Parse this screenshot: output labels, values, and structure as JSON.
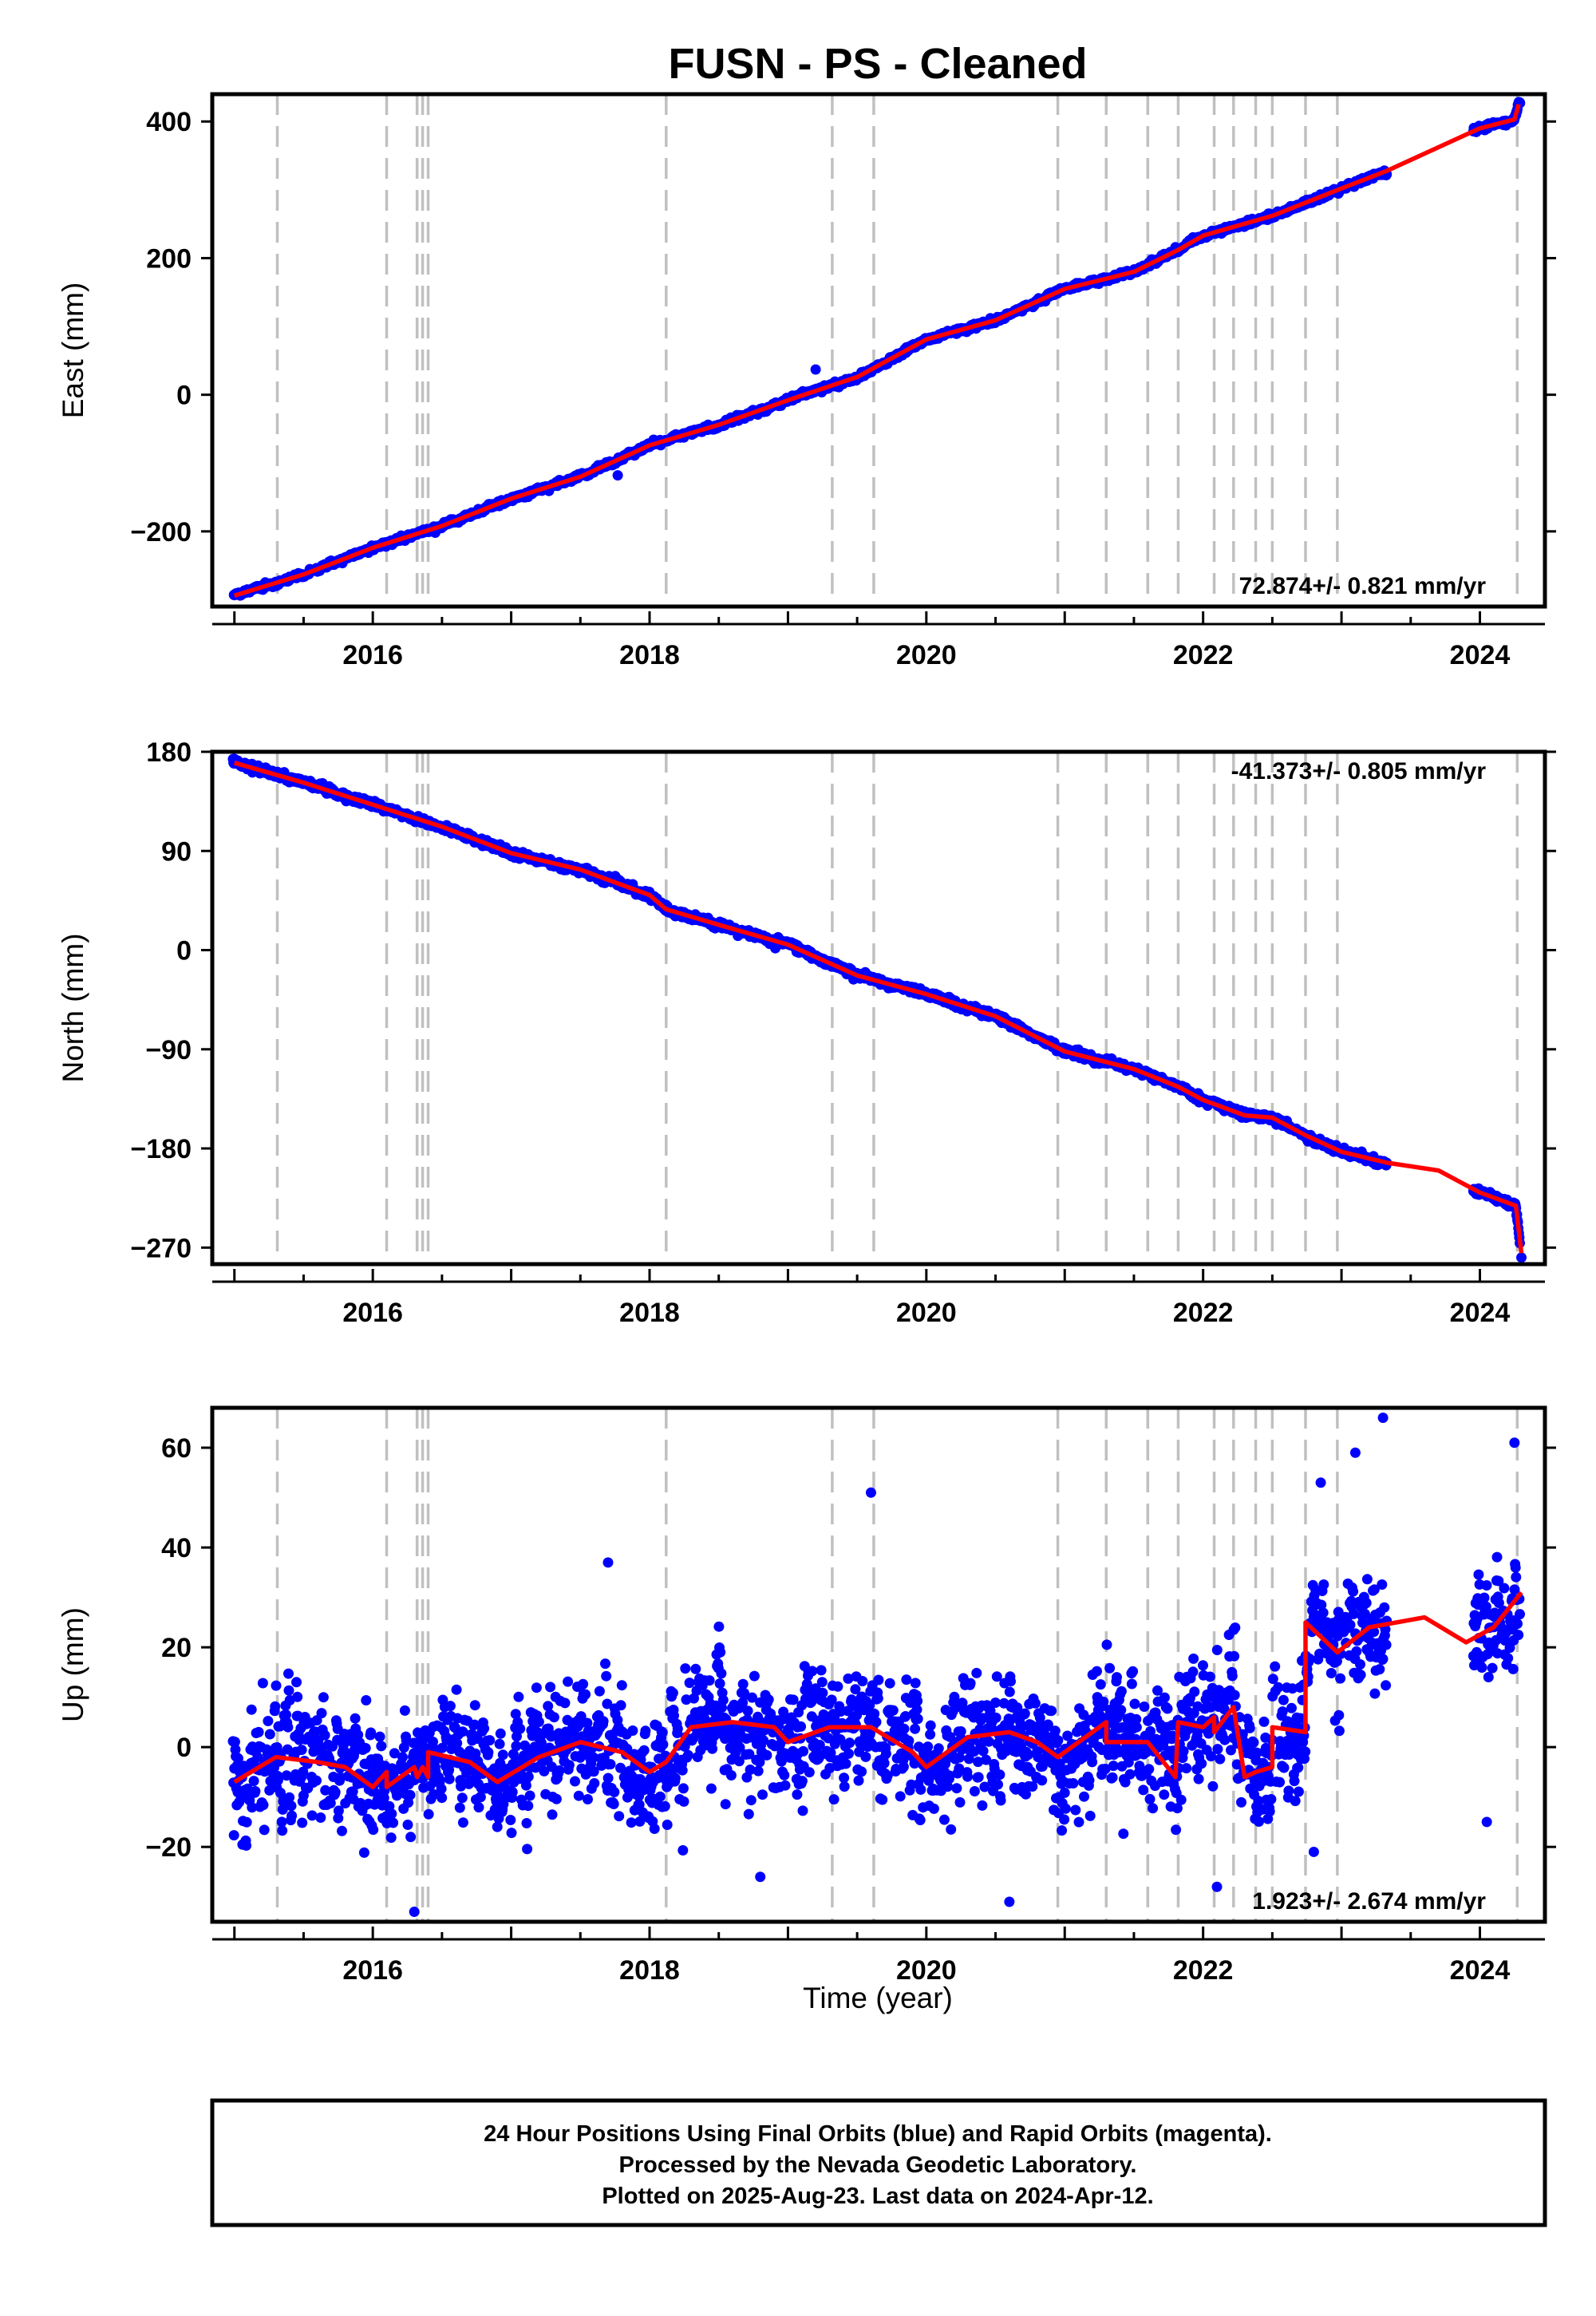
{
  "title": "FUSN  - PS - Cleaned",
  "xlabel": "Time (year)",
  "colors": {
    "points": "#0000ff",
    "model": "#ff0000",
    "events": "#c0c0c0",
    "frame": "#000000"
  },
  "events": [
    2015.31,
    2016.1,
    2016.32,
    2016.36,
    2016.4,
    2018.12,
    2019.32,
    2019.62,
    2020.95,
    2021.3,
    2021.6,
    2021.82,
    2022.08,
    2022.22,
    2022.38,
    2022.5,
    2022.74,
    2022.97,
    2024.27
  ],
  "footer": {
    "line1": "24 Hour Positions Using Final Orbits (blue) and Rapid Orbits (magenta).",
    "line2": "Processed by the Nevada Geodetic Laboratory.",
    "line3": "Plotted on 2025-Aug-23. Last data on 2024-Apr-12."
  },
  "chart_data": [
    {
      "type": "scatter",
      "ylabel": "East (mm)",
      "rate_label": "72.874+/- 0.821 mm/yr",
      "xlim": [
        2014.84,
        2024.47
      ],
      "ylim": [
        -310,
        440
      ],
      "xticks": [
        2016,
        2018,
        2020,
        2022,
        2024
      ],
      "yticks": [
        -200,
        0,
        200,
        400
      ],
      "ytick_labels": [
        "−200",
        "0",
        "200",
        "400"
      ],
      "noise": 3,
      "gaps": [
        [
          2023.33,
          2024.0
        ]
      ],
      "model": [
        [
          2015.0,
          -294
        ],
        [
          2015.5,
          -263
        ],
        [
          2016.0,
          -224
        ],
        [
          2016.5,
          -192
        ],
        [
          2017.0,
          -152
        ],
        [
          2017.5,
          -120
        ],
        [
          2018.0,
          -74
        ],
        [
          2018.5,
          -44
        ],
        [
          2019.0,
          -8
        ],
        [
          2019.5,
          26
        ],
        [
          2020.0,
          81
        ],
        [
          2020.5,
          109
        ],
        [
          2021.0,
          155
        ],
        [
          2021.5,
          180
        ],
        [
          2021.82,
          212
        ],
        [
          2022.0,
          233
        ],
        [
          2022.5,
          262
        ],
        [
          2023.0,
          302
        ],
        [
          2023.33,
          328
        ],
        [
          2024.0,
          390
        ],
        [
          2024.25,
          403
        ],
        [
          2024.28,
          425
        ]
      ],
      "outliers": [
        [
          2017.77,
          -118
        ],
        [
          2024.29,
          427
        ],
        [
          2016.46,
          -197
        ],
        [
          2019.2,
          37
        ]
      ]
    },
    {
      "type": "scatter",
      "ylabel": "North (mm)",
      "rate_label": "-41.373+/- 0.805 mm/yr",
      "xlim": [
        2014.84,
        2024.47
      ],
      "ylim": [
        -285,
        180
      ],
      "xticks": [
        2016,
        2018,
        2020,
        2022,
        2024
      ],
      "yticks": [
        -270,
        -180,
        -90,
        0,
        90,
        180
      ],
      "ytick_labels": [
        "−270",
        "−180",
        "−90",
        "0",
        "90",
        "180"
      ],
      "noise": 2.5,
      "gaps": [
        [
          2023.33,
          2024.0
        ]
      ],
      "model": [
        [
          2015.0,
          170
        ],
        [
          2015.5,
          152
        ],
        [
          2016.0,
          132
        ],
        [
          2016.5,
          112
        ],
        [
          2017.0,
          88
        ],
        [
          2017.5,
          73
        ],
        [
          2018.0,
          50
        ],
        [
          2018.12,
          37
        ],
        [
          2018.5,
          23
        ],
        [
          2019.0,
          5
        ],
        [
          2019.5,
          -23
        ],
        [
          2020.0,
          -40
        ],
        [
          2020.5,
          -60
        ],
        [
          2021.0,
          -92
        ],
        [
          2021.5,
          -108
        ],
        [
          2021.82,
          -124
        ],
        [
          2022.0,
          -136
        ],
        [
          2022.3,
          -150
        ],
        [
          2022.5,
          -152
        ],
        [
          2022.74,
          -168
        ],
        [
          2023.0,
          -183
        ],
        [
          2023.33,
          -193
        ],
        [
          2023.7,
          -200
        ],
        [
          2024.0,
          -220
        ],
        [
          2024.26,
          -232
        ],
        [
          2024.3,
          -275
        ]
      ],
      "outliers": [
        [
          2024.3,
          -279
        ],
        [
          2017.98,
          48
        ]
      ]
    },
    {
      "type": "scatter",
      "ylabel": "Up (mm)",
      "rate_label": "1.923+/- 2.674 mm/yr",
      "xlim": [
        2014.84,
        2024.47
      ],
      "ylim": [
        -35,
        68
      ],
      "xticks": [
        2016,
        2018,
        2020,
        2022,
        2024
      ],
      "yticks": [
        -20,
        0,
        20,
        40,
        60
      ],
      "ytick_labels": [
        "−20",
        "0",
        "20",
        "40",
        "60"
      ],
      "noise": 9,
      "gaps": [
        [
          2023.33,
          2024.0
        ]
      ],
      "model": [
        [
          2015.0,
          -7
        ],
        [
          2015.3,
          -2
        ],
        [
          2015.6,
          -3
        ],
        [
          2015.8,
          -4
        ],
        [
          2016.0,
          -8
        ],
        [
          2016.1,
          -5
        ],
        [
          2016.1,
          -8
        ],
        [
          2016.3,
          -4
        ],
        [
          2016.32,
          -6
        ],
        [
          2016.36,
          -4
        ],
        [
          2016.4,
          -6
        ],
        [
          2016.4,
          -1
        ],
        [
          2016.7,
          -3
        ],
        [
          2016.9,
          -7
        ],
        [
          2017.2,
          -2
        ],
        [
          2017.5,
          1
        ],
        [
          2017.8,
          -1
        ],
        [
          2018.0,
          -5
        ],
        [
          2018.12,
          -3
        ],
        [
          2018.3,
          4
        ],
        [
          2018.6,
          5
        ],
        [
          2018.9,
          4
        ],
        [
          2019.0,
          1
        ],
        [
          2019.3,
          4
        ],
        [
          2019.6,
          4
        ],
        [
          2019.9,
          -1
        ],
        [
          2020.0,
          -4
        ],
        [
          2020.3,
          2
        ],
        [
          2020.6,
          3
        ],
        [
          2020.8,
          1
        ],
        [
          2020.95,
          -2
        ],
        [
          2021.1,
          1
        ],
        [
          2021.3,
          5
        ],
        [
          2021.3,
          1
        ],
        [
          2021.6,
          1
        ],
        [
          2021.8,
          -6
        ],
        [
          2021.82,
          5
        ],
        [
          2022.0,
          4
        ],
        [
          2022.08,
          6
        ],
        [
          2022.08,
          3
        ],
        [
          2022.22,
          8
        ],
        [
          2022.3,
          -6
        ],
        [
          2022.38,
          -5
        ],
        [
          2022.5,
          -4
        ],
        [
          2022.5,
          4
        ],
        [
          2022.74,
          3
        ],
        [
          2022.74,
          25
        ],
        [
          2022.97,
          19
        ],
        [
          2023.2,
          24
        ],
        [
          2023.6,
          26
        ],
        [
          2023.9,
          21
        ],
        [
          2024.1,
          24
        ],
        [
          2024.3,
          31
        ]
      ],
      "outliers": [
        [
          2017.7,
          37
        ],
        [
          2019.6,
          51
        ],
        [
          2016.3,
          -33
        ],
        [
          2023.3,
          66
        ],
        [
          2023.1,
          59
        ],
        [
          2024.25,
          61
        ],
        [
          2022.1,
          -28
        ],
        [
          2018.8,
          -26
        ],
        [
          2020.6,
          -31
        ],
        [
          2022.8,
          -21
        ],
        [
          2024.05,
          -15
        ],
        [
          2022.85,
          53
        ]
      ]
    }
  ]
}
